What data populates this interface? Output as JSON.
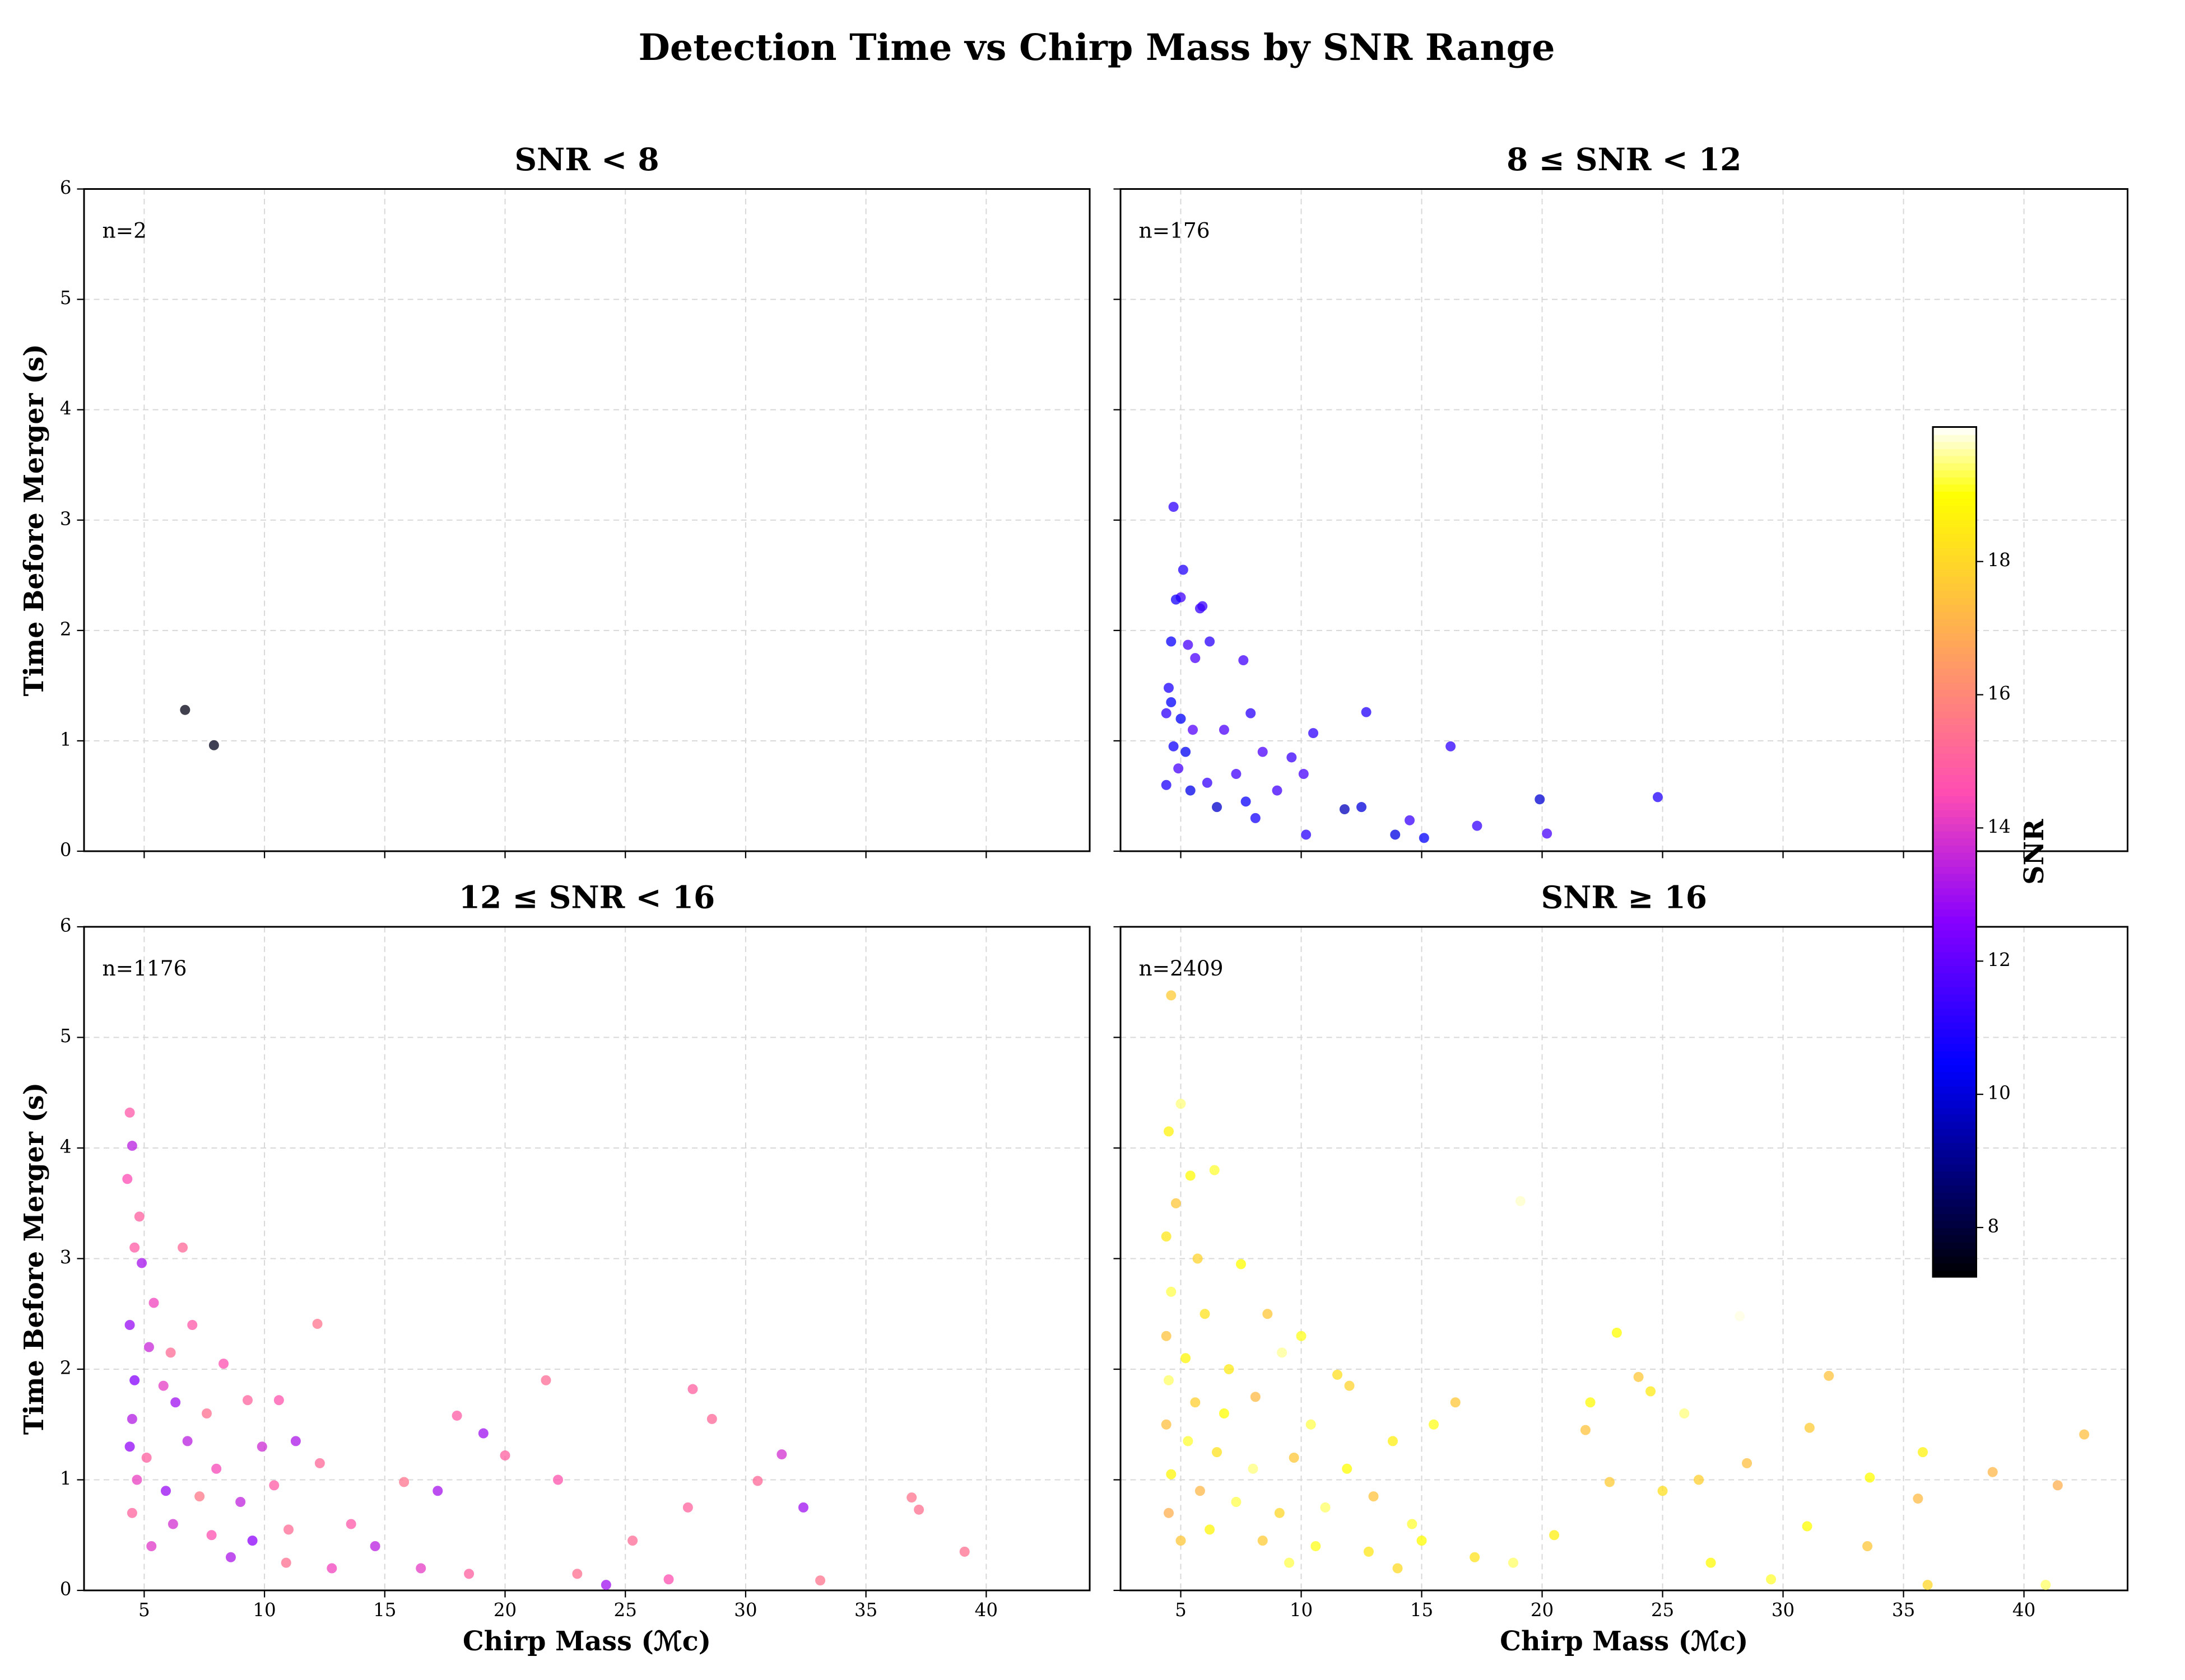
{
  "title": "Detection Time vs Chirp Mass by SNR Range",
  "colorbar": {
    "label": "SNR",
    "colormap": "gnuplot2",
    "clim": [
      7.26,
      20.02
    ],
    "ticks": [
      8,
      10,
      12,
      14,
      16,
      18
    ]
  },
  "chart_data": [
    {
      "type": "scatter",
      "title": "SNR < 8",
      "annotation": "n=2",
      "ylabel": "Time Before Merger (s)",
      "xlim": [
        2.5,
        44.3
      ],
      "ylim": [
        0,
        6
      ],
      "xticks": [
        5,
        10,
        15,
        20,
        25,
        30,
        35,
        40
      ],
      "yticks": [
        0,
        1,
        2,
        3,
        4,
        5,
        6
      ],
      "grid": true,
      "x": [
        6.7,
        7.9
      ],
      "values": [
        1.28,
        0.96
      ],
      "color_values": [
        7.5,
        7.6
      ]
    },
    {
      "type": "scatter",
      "title": "8 ≤ SNR < 12",
      "annotation": "n=176",
      "xlim": [
        2.5,
        44.3
      ],
      "ylim": [
        0,
        6
      ],
      "xticks": [
        5,
        10,
        15,
        20,
        25,
        30,
        35,
        40
      ],
      "yticks": [
        0,
        1,
        2,
        3,
        4,
        5,
        6
      ],
      "grid": true,
      "x": [
        4.7,
        5.1,
        5.0,
        4.8,
        5.8,
        5.9,
        4.6,
        5.3,
        6.2,
        5.6,
        7.6,
        4.5,
        4.6,
        4.4,
        5.0,
        5.5,
        4.7,
        5.2,
        4.9,
        4.4,
        5.4,
        6.1,
        6.5,
        7.3,
        7.9,
        8.4,
        7.7,
        8.1,
        9.6,
        10.5,
        10.1,
        11.8,
        12.7,
        13.9,
        14.5,
        15.1,
        16.2,
        17.3,
        19.9,
        20.2,
        24.8,
        10.2,
        12.5,
        9.0,
        6.8
      ],
      "values": [
        3.12,
        2.55,
        2.3,
        2.28,
        2.2,
        2.22,
        1.9,
        1.87,
        1.9,
        1.75,
        1.73,
        1.48,
        1.35,
        1.25,
        1.2,
        1.1,
        0.95,
        0.9,
        0.75,
        0.6,
        0.55,
        0.62,
        0.4,
        0.7,
        1.25,
        0.9,
        0.45,
        0.3,
        0.85,
        1.07,
        0.7,
        0.38,
        1.26,
        0.15,
        0.28,
        0.12,
        0.95,
        0.23,
        0.47,
        0.16,
        0.49,
        0.15,
        0.4,
        0.55,
        1.1
      ],
      "color_values": [
        11.2,
        11.0,
        11.5,
        10.8,
        11.3,
        11.4,
        10.6,
        11.6,
        11.1,
        11.7,
        11.5,
        10.9,
        10.5,
        11.2,
        10.4,
        11.8,
        10.7,
        10.3,
        11.6,
        10.9,
        10.2,
        11.3,
        9.8,
        11.5,
        11.1,
        11.7,
        10.6,
        10.8,
        11.4,
        11.2,
        11.6,
        9.6,
        11.0,
        10.1,
        11.4,
        10.5,
        11.2,
        11.3,
        9.9,
        11.6,
        11.0,
        11.1,
        10.0,
        11.5,
        11.7
      ]
    },
    {
      "type": "scatter",
      "title": "12 ≤ SNR < 16",
      "annotation": "n=1176",
      "xlabel": "Chirp Mass (ℳc)",
      "ylabel": "Time Before Merger (s)",
      "xlim": [
        2.5,
        44.3
      ],
      "ylim": [
        0,
        6
      ],
      "xticks": [
        5,
        10,
        15,
        20,
        25,
        30,
        35,
        40
      ],
      "yticks": [
        0,
        1,
        2,
        3,
        4,
        5,
        6
      ],
      "grid": true,
      "x": [
        4.4,
        4.5,
        4.3,
        4.8,
        4.6,
        6.6,
        4.9,
        5.4,
        4.4,
        5.2,
        7.0,
        6.1,
        4.6,
        5.8,
        8.3,
        4.5,
        6.3,
        7.6,
        9.3,
        10.6,
        12.2,
        4.4,
        5.1,
        6.8,
        8.0,
        9.9,
        11.3,
        4.7,
        5.9,
        7.3,
        9.0,
        10.4,
        12.3,
        4.5,
        6.2,
        7.8,
        9.5,
        11.0,
        13.6,
        5.3,
        8.6,
        10.9,
        12.8,
        14.6,
        15.8,
        17.2,
        18.0,
        19.1,
        20.0,
        21.7,
        22.2,
        16.5,
        18.5,
        23.0,
        25.3,
        27.8,
        28.6,
        27.6,
        30.5,
        31.5,
        32.4,
        36.9,
        37.2,
        39.1,
        33.1,
        26.8,
        24.2
      ],
      "values": [
        4.32,
        4.02,
        3.72,
        3.38,
        3.1,
        3.1,
        2.96,
        2.6,
        2.4,
        2.2,
        2.4,
        2.15,
        1.9,
        1.85,
        2.05,
        1.55,
        1.7,
        1.6,
        1.72,
        1.72,
        2.41,
        1.3,
        1.2,
        1.35,
        1.1,
        1.3,
        1.35,
        1.0,
        0.9,
        0.85,
        0.8,
        0.95,
        1.15,
        0.7,
        0.6,
        0.5,
        0.45,
        0.55,
        0.6,
        0.4,
        0.3,
        0.25,
        0.2,
        0.4,
        0.98,
        0.9,
        1.58,
        1.42,
        1.22,
        1.9,
        1.0,
        0.2,
        0.15,
        0.15,
        0.45,
        1.82,
        1.55,
        0.75,
        0.99,
        1.23,
        0.75,
        0.84,
        0.73,
        0.35,
        0.09,
        0.1,
        0.05
      ],
      "color_values": [
        14.8,
        13.4,
        14.5,
        15.0,
        14.9,
        15.2,
        13.1,
        14.3,
        12.9,
        13.6,
        14.8,
        15.3,
        12.6,
        14.1,
        14.6,
        13.3,
        13.0,
        15.4,
        15.1,
        14.7,
        15.5,
        12.8,
        15.0,
        13.4,
        14.4,
        13.7,
        13.2,
        14.2,
        12.9,
        15.6,
        13.5,
        14.9,
        15.2,
        15.1,
        13.8,
        14.6,
        12.7,
        15.3,
        14.8,
        14.0,
        13.2,
        15.4,
        14.3,
        13.4,
        15.5,
        13.1,
        14.9,
        13.0,
        15.0,
        15.3,
        14.7,
        14.1,
        15.0,
        15.4,
        15.3,
        15.0,
        15.2,
        15.1,
        15.2,
        13.8,
        13.0,
        15.5,
        15.4,
        15.4,
        15.5,
        14.6,
        13.0
      ]
    },
    {
      "type": "scatter",
      "title": "SNR ≥ 16",
      "annotation": "n=2409",
      "xlabel": "Chirp Mass (ℳc)",
      "xlim": [
        2.5,
        44.3
      ],
      "ylim": [
        0,
        6
      ],
      "xticks": [
        5,
        10,
        15,
        20,
        25,
        30,
        35,
        40
      ],
      "yticks": [
        0,
        1,
        2,
        3,
        4,
        5,
        6
      ],
      "grid": true,
      "x": [
        4.6,
        5.0,
        4.5,
        5.4,
        4.8,
        6.4,
        4.4,
        5.7,
        7.5,
        4.6,
        6.0,
        8.6,
        10.0,
        4.4,
        5.2,
        7.0,
        9.2,
        11.5,
        4.5,
        5.6,
        6.8,
        8.1,
        10.4,
        12.0,
        4.4,
        5.3,
        6.5,
        8.0,
        9.7,
        11.9,
        13.8,
        15.5,
        4.6,
        5.8,
        7.3,
        9.1,
        11.0,
        13.0,
        14.6,
        16.4,
        4.5,
        6.2,
        8.4,
        10.6,
        12.8,
        15.0,
        17.2,
        5.0,
        9.5,
        14.0,
        18.8,
        19.1,
        21.8,
        22.0,
        23.1,
        24.0,
        24.5,
        25.9,
        22.8,
        25.0,
        26.5,
        28.5,
        28.2,
        31.1,
        31.9,
        33.6,
        35.8,
        35.6,
        38.7,
        41.4,
        42.5,
        31.0,
        33.5,
        27.0,
        29.5,
        36.0,
        40.9,
        20.5
      ],
      "values": [
        5.38,
        4.4,
        4.15,
        3.75,
        3.5,
        3.8,
        3.2,
        3.0,
        2.95,
        2.7,
        2.5,
        2.5,
        2.3,
        2.3,
        2.1,
        2.0,
        2.15,
        1.95,
        1.9,
        1.7,
        1.6,
        1.75,
        1.5,
        1.85,
        1.5,
        1.35,
        1.25,
        1.1,
        1.2,
        1.1,
        1.35,
        1.5,
        1.05,
        0.9,
        0.8,
        0.7,
        0.75,
        0.85,
        0.6,
        1.7,
        0.7,
        0.55,
        0.45,
        0.4,
        0.35,
        0.45,
        0.3,
        0.45,
        0.25,
        0.2,
        0.25,
        3.52,
        1.45,
        1.7,
        2.33,
        1.93,
        1.8,
        1.6,
        0.98,
        0.9,
        1.0,
        1.15,
        2.48,
        1.47,
        1.94,
        1.02,
        1.25,
        0.83,
        1.07,
        0.95,
        1.41,
        0.58,
        0.4,
        0.25,
        0.1,
        0.05,
        0.05,
        0.5
      ],
      "color_values": [
        17.7,
        19.5,
        18.7,
        18.9,
        17.6,
        19.2,
        18.4,
        17.9,
        19.0,
        19.3,
        18.3,
        17.6,
        19.1,
        17.5,
        18.8,
        18.5,
        19.6,
        18.2,
        19.4,
        17.8,
        19.0,
        17.3,
        19.3,
        17.9,
        17.4,
        19.2,
        18.3,
        19.5,
        17.6,
        19.0,
        18.6,
        19.1,
        18.8,
        17.2,
        19.3,
        18.0,
        19.4,
        17.5,
        19.2,
        17.6,
        17.0,
        18.8,
        17.7,
        19.1,
        18.4,
        19.0,
        18.3,
        17.6,
        19.3,
        18.1,
        19.4,
        19.8,
        17.5,
        18.9,
        19.0,
        17.6,
        18.5,
        19.5,
        17.7,
        18.2,
        17.8,
        17.4,
        19.9,
        17.7,
        17.5,
        19.0,
        18.7,
        17.3,
        17.2,
        17.0,
        17.4,
        19.0,
        17.6,
        18.9,
        19.2,
        18.0,
        19.4,
        18.6
      ]
    }
  ]
}
